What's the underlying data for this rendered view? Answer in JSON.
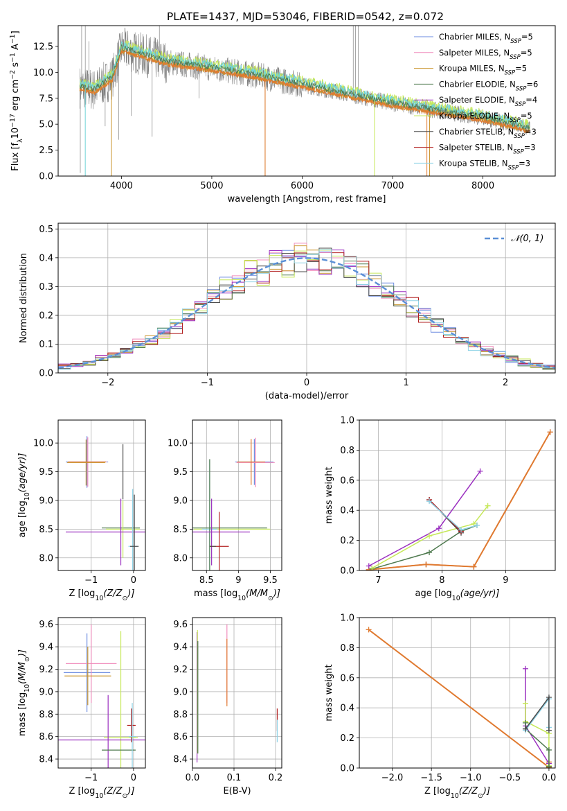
{
  "figure": {
    "title": "PLATE=1437, MJD=53046, FIBERID=0542, z=0.072"
  },
  "colors": {
    "chab_miles": "#6b8be0",
    "salp_miles": "#f08cbc",
    "krou_miles": "#c9942d",
    "chab_elodie": "#4f7a4f",
    "salp_elodie": "#9b30c0",
    "krou_elodie": "#c6e85a",
    "chab_stelib": "#4a4a4a",
    "salp_stelib": "#b22020",
    "krou_stelib": "#8ed2e6",
    "data_grey": "#808080",
    "model_orange": "#e07a30",
    "model_cyan": "#6fd3d6",
    "gauss": "#5b8fd6"
  },
  "chart_data": [
    {
      "id": "spectrum",
      "type": "line",
      "xlabel": "wavelength [Angstrom, rest frame]",
      "ylabel_parts": [
        "Flux [f",
        "λ",
        "10",
        "−17",
        " erg cm",
        "−2",
        " s",
        "−1",
        " A",
        "−1",
        "]"
      ],
      "xlim": [
        3300,
        8800
      ],
      "ylim": [
        0,
        14.5
      ],
      "xticks": [
        4000,
        5000,
        6000,
        7000,
        8000
      ],
      "yticks": [
        0.0,
        2.5,
        5.0,
        7.5,
        10.0,
        12.5
      ],
      "continuum": [
        [
          3540,
          8.6
        ],
        [
          3700,
          8.3
        ],
        [
          3900,
          9.5
        ],
        [
          4000,
          12.3
        ],
        [
          4200,
          11.8
        ],
        [
          4500,
          11.0
        ],
        [
          5000,
          10.4
        ],
        [
          5500,
          9.7
        ],
        [
          6000,
          8.8
        ],
        [
          6500,
          7.9
        ],
        [
          7000,
          7.0
        ],
        [
          7500,
          6.3
        ],
        [
          8000,
          5.6
        ],
        [
          8500,
          4.6
        ]
      ],
      "legend": [
        {
          "label": "Chabrier MILES, N",
          "sub": "SSP",
          "tail": "=5",
          "color_key": "chab_miles"
        },
        {
          "label": "Salpeter MILES, N",
          "sub": "SSP",
          "tail": "=5",
          "color_key": "salp_miles"
        },
        {
          "label": "Kroupa MILES, N",
          "sub": "SSP",
          "tail": "=5",
          "color_key": "krou_miles"
        },
        {
          "label": "Chabrier ELODIE, N",
          "sub": "SSP",
          "tail": "=6",
          "color_key": "chab_elodie"
        },
        {
          "label": "Salpeter ELODIE, N",
          "sub": "SSP",
          "tail": "=4",
          "color_key": "salp_elodie"
        },
        {
          "label": "Kroupa ELODIE, N",
          "sub": "SSP",
          "tail": "=5",
          "color_key": "krou_elodie"
        },
        {
          "label": "Chabrier STELIB, N",
          "sub": "SSP",
          "tail": "=3",
          "color_key": "chab_stelib"
        },
        {
          "label": "Salpeter STELIB, N",
          "sub": "SSP",
          "tail": "=3",
          "color_key": "salp_stelib"
        },
        {
          "label": "Kroupa STELIB, N",
          "sub": "SSP",
          "tail": "=3",
          "color_key": "krou_stelib"
        }
      ],
      "legend_placement": "top-right",
      "grid": false
    },
    {
      "id": "residuals",
      "type": "line",
      "xlabel": "(data-model)/error",
      "ylabel": "Normed distribution",
      "xlim": [
        -2.5,
        2.5
      ],
      "ylim": [
        0,
        0.52
      ],
      "xticks": [
        -2,
        -1,
        0,
        1,
        2
      ],
      "yticks": [
        0.0,
        0.1,
        0.2,
        0.3,
        0.4,
        0.5
      ],
      "legend": [
        {
          "label": "𝒩(0, 1)",
          "color_key": "gauss",
          "style": "dashed"
        }
      ],
      "legend_placement": "top-right",
      "grid": true
    },
    {
      "id": "age_vs_Z",
      "type": "scatter",
      "xlabel_parts": [
        "Z [log",
        "10",
        "(Z/Z",
        "⊙",
        ")]"
      ],
      "ylabel_parts": [
        "age  [log",
        "10",
        "(age/yr)]"
      ],
      "xlim": [
        -1.78,
        0.28
      ],
      "ylim": [
        7.78,
        10.4
      ],
      "xticks": [
        -1,
        0
      ],
      "yticks": [
        8.0,
        8.5,
        9.0,
        9.5,
        10.0
      ],
      "grid": true
    },
    {
      "id": "age_vs_mass",
      "type": "scatter",
      "xlabel_parts": [
        "mass [log",
        "10",
        "(M/M",
        "⊙",
        ")]"
      ],
      "xlim": [
        8.28,
        9.68
      ],
      "ylim": [
        7.78,
        10.4
      ],
      "xticks": [
        8.5,
        9.0,
        9.5
      ],
      "yticks": [
        8.0,
        8.5,
        9.0,
        9.5,
        10.0
      ],
      "grid": true
    },
    {
      "id": "weight_vs_age",
      "type": "line",
      "xlabel_parts": [
        "age  [log",
        "10",
        "(age/yr)]"
      ],
      "ylabel": "mass weight",
      "xlim": [
        6.7,
        9.78
      ],
      "ylim": [
        0,
        1.0
      ],
      "xticks": [
        7,
        8,
        9
      ],
      "yticks": [
        0.0,
        0.2,
        0.4,
        0.6,
        0.8,
        1.0
      ],
      "grid": true,
      "series": [
        {
          "color_key": "chab_miles",
          "points": [
            [
              6.85,
              0.005
            ],
            [
              7.75,
              0.04
            ],
            [
              8.5,
              0.025
            ],
            [
              9.7,
              0.92
            ]
          ]
        },
        {
          "color_key": "salp_miles",
          "points": [
            [
              6.85,
              0.005
            ],
            [
              7.75,
              0.04
            ],
            [
              8.5,
              0.025
            ],
            [
              9.7,
              0.92
            ]
          ]
        },
        {
          "color_key": "krou_miles",
          "points": [
            [
              6.85,
              0.005
            ],
            [
              7.75,
              0.04
            ],
            [
              8.5,
              0.025
            ],
            [
              9.7,
              0.92
            ]
          ]
        },
        {
          "color_key": "model_orange",
          "points": [
            [
              6.85,
              0.005
            ],
            [
              7.75,
              0.04
            ],
            [
              8.5,
              0.025
            ],
            [
              9.7,
              0.92
            ]
          ]
        },
        {
          "color_key": "chab_elodie",
          "points": [
            [
              6.9,
              0.01
            ],
            [
              7.8,
              0.12
            ],
            [
              8.3,
              0.26
            ],
            [
              8.55,
              0.3
            ]
          ]
        },
        {
          "color_key": "salp_elodie",
          "points": [
            [
              6.85,
              0.03
            ],
            [
              7.95,
              0.28
            ],
            [
              8.6,
              0.66
            ]
          ]
        },
        {
          "color_key": "krou_elodie",
          "points": [
            [
              6.9,
              0.015
            ],
            [
              7.8,
              0.23
            ],
            [
              8.5,
              0.31
            ],
            [
              8.72,
              0.43
            ]
          ]
        },
        {
          "color_key": "chab_stelib",
          "points": [
            [
              7.8,
              0.47
            ],
            [
              8.3,
              0.25
            ]
          ]
        },
        {
          "color_key": "salp_stelib",
          "points": [
            [
              7.8,
              0.47
            ],
            [
              8.3,
              0.26
            ]
          ]
        },
        {
          "color_key": "krou_stelib",
          "points": [
            [
              7.8,
              0.46
            ],
            [
              8.3,
              0.27
            ],
            [
              8.55,
              0.3
            ]
          ]
        }
      ]
    },
    {
      "id": "mass_vs_Z",
      "type": "scatter",
      "xlabel_parts": [
        "Z [log",
        "10",
        "(Z/Z",
        "⊙",
        ")]"
      ],
      "ylabel_parts": [
        "mass [log",
        "10",
        "(M/M",
        "⊙",
        ")]"
      ],
      "xlim": [
        -1.78,
        0.28
      ],
      "ylim": [
        8.32,
        9.66
      ],
      "xticks": [
        -1,
        0
      ],
      "yticks": [
        8.4,
        8.6,
        8.8,
        9.0,
        9.2,
        9.4,
        9.6
      ],
      "grid": true
    },
    {
      "id": "mass_vs_ebv",
      "type": "scatter",
      "xlabel": "E(B-V)",
      "xlim": [
        0,
        0.215
      ],
      "ylim": [
        8.32,
        9.66
      ],
      "xticks": [
        0.0,
        0.1,
        0.2
      ],
      "yticks": [
        8.4,
        8.6,
        8.8,
        9.0,
        9.2,
        9.4,
        9.6
      ],
      "grid": true
    },
    {
      "id": "weight_vs_Z",
      "type": "line",
      "xlabel_parts": [
        "Z [log",
        "10",
        "(Z/Z",
        "⊙",
        ")]"
      ],
      "ylabel": "mass weight",
      "xlim": [
        -2.42,
        0.08
      ],
      "ylim": [
        0,
        1.0
      ],
      "xticks": [
        -2.0,
        -1.5,
        -1.0,
        -0.5,
        0.0
      ],
      "yticks": [
        0.0,
        0.2,
        0.4,
        0.6,
        0.8,
        1.0
      ],
      "grid": true,
      "series": [
        {
          "color_key": "model_orange",
          "points": [
            [
              -2.3,
              0.92
            ],
            [
              0.0,
              0.005
            ],
            [
              0.0,
              0.04
            ]
          ]
        },
        {
          "color_key": "salp_elodie",
          "points": [
            [
              -0.3,
              0.66
            ],
            [
              -0.3,
              0.28
            ],
            [
              0.0,
              0.03
            ]
          ]
        },
        {
          "color_key": "krou_elodie",
          "points": [
            [
              -0.3,
              0.43
            ],
            [
              -0.3,
              0.31
            ],
            [
              0.0,
              0.23
            ],
            [
              0.0,
              0.015
            ]
          ]
        },
        {
          "color_key": "chab_elodie",
          "points": [
            [
              -0.3,
              0.3
            ],
            [
              -0.3,
              0.26
            ],
            [
              0.0,
              0.12
            ],
            [
              0.0,
              0.01
            ]
          ]
        },
        {
          "color_key": "krou_stelib",
          "points": [
            [
              -0.3,
              0.25
            ],
            [
              0.0,
              0.46
            ],
            [
              0.0,
              0.27
            ]
          ]
        },
        {
          "color_key": "chab_stelib",
          "points": [
            [
              -0.3,
              0.26
            ],
            [
              0.0,
              0.47
            ],
            [
              0.0,
              0.25
            ]
          ]
        }
      ]
    }
  ]
}
